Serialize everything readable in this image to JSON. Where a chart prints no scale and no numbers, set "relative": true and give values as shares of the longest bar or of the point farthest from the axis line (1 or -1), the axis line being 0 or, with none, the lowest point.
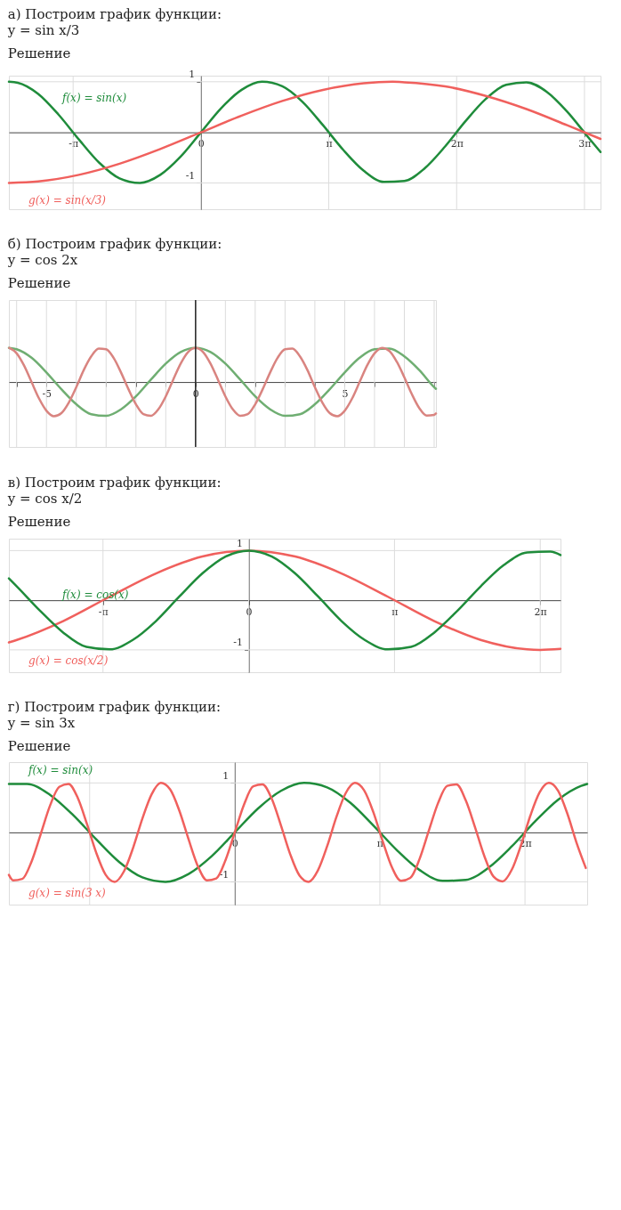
{
  "chart_data": [
    {
      "type": "line",
      "title": "а) Построим график функции:",
      "subtitle": "y = sin x/3",
      "annotations": [
        "Решение"
      ],
      "xlim": [
        -4.72,
        9.82
      ],
      "ylim": [
        -1.52,
        1.12
      ],
      "xticks": [
        {
          "value": -3.1416,
          "label": "-π"
        },
        0,
        {
          "value": 3.1416,
          "label": "π"
        },
        {
          "value": 6.2832,
          "label": "2π"
        },
        {
          "value": 9.4248,
          "label": "3π"
        }
      ],
      "yticks": [
        -1,
        1
      ],
      "grid": true,
      "series": [
        {
          "name": "f(x) = sin(x)",
          "color": "#1f8c3b",
          "x": [
            -4.72,
            -4.5,
            -4,
            -3.5,
            -3,
            -2.5,
            -2,
            -1.5,
            -1,
            -0.5,
            0,
            0.5,
            1,
            1.5,
            2,
            2.5,
            3,
            3.5,
            4,
            4.5,
            5,
            5.5,
            6,
            6.5,
            7,
            7.5,
            8,
            8.5,
            9,
            9.5,
            9.82
          ],
          "values": [
            1.0,
            0.98,
            0.76,
            0.35,
            -0.14,
            -0.6,
            -0.91,
            -1.0,
            -0.84,
            -0.48,
            0,
            0.48,
            0.84,
            1.0,
            0.91,
            0.6,
            0.14,
            -0.35,
            -0.76,
            -0.98,
            -0.96,
            -0.71,
            -0.28,
            0.22,
            0.66,
            0.94,
            0.99,
            0.8,
            0.41,
            -0.08,
            -0.39
          ]
        },
        {
          "name": "g(x) = sin(x/3)",
          "color": "#f0605d",
          "x": [
            -4.72,
            -4,
            -3,
            -2,
            -1,
            0,
            1,
            2,
            3,
            4,
            4.71,
            5,
            6,
            7,
            8,
            9,
            9.82
          ],
          "values": [
            -1.0,
            -0.97,
            -0.84,
            -0.62,
            -0.33,
            0,
            0.33,
            0.62,
            0.84,
            0.97,
            1.0,
            0.99,
            0.91,
            0.72,
            0.46,
            0.14,
            -0.13
          ]
        }
      ]
    },
    {
      "type": "line",
      "title": "б) Построим график функции:",
      "subtitle": "y = cos 2x",
      "annotations": [
        "Решение"
      ],
      "relative": true,
      "xlim": [
        -6.26,
        8.06
      ],
      "xticks": [
        {
          "value": -6,
          "label": null
        },
        -5,
        {
          "value": -4,
          "label": null
        },
        {
          "value": -3,
          "label": null
        },
        {
          "value": -2,
          "label": null
        },
        {
          "value": -1,
          "label": null
        },
        0,
        {
          "value": 1,
          "label": null
        },
        {
          "value": 2,
          "label": null
        },
        {
          "value": 3,
          "label": null
        },
        {
          "value": 4,
          "label": null
        },
        5,
        {
          "value": 6,
          "label": null
        },
        {
          "value": 7,
          "label": null
        },
        {
          "value": 8,
          "label": null
        }
      ],
      "grid": "x",
      "ref_lines": [
        {
          "axis": "x",
          "value": 0,
          "color": "#222222"
        }
      ],
      "series": [
        {
          "color": "#6fae72",
          "x": [
            -6.26,
            -6,
            -5.5,
            -5,
            -4.5,
            -4,
            -3.5,
            -3,
            -2.5,
            -2,
            -1.5,
            -1,
            -0.5,
            0,
            0.5,
            1,
            1.5,
            2,
            2.5,
            3,
            3.5,
            4,
            4.5,
            5,
            5.5,
            6,
            6.5,
            7,
            7.5,
            8,
            8.06
          ],
          "values": [
            1.0,
            0.96,
            0.71,
            0.28,
            -0.21,
            -0.65,
            -0.94,
            -0.99,
            -0.8,
            -0.42,
            0.07,
            0.54,
            0.88,
            1,
            0.88,
            0.54,
            0.07,
            -0.42,
            -0.8,
            -0.99,
            -0.94,
            -0.65,
            -0.21,
            0.28,
            0.71,
            0.96,
            0.98,
            0.75,
            0.35,
            -0.15,
            -0.2
          ]
        },
        {
          "color": "#d98480",
          "x": [
            -6.25,
            -6,
            -5.75,
            -5.5,
            -5.25,
            -5,
            -4.75,
            -4.5,
            -4.25,
            -4,
            -3.75,
            -3.5,
            -3.25,
            -3,
            -2.75,
            -2.5,
            -2.25,
            -2,
            -1.75,
            -1.5,
            -1.25,
            -1,
            -0.75,
            -0.5,
            -0.25,
            0,
            0.25,
            0.5,
            0.75,
            1,
            1.25,
            1.5,
            1.75,
            2,
            2.25,
            2.5,
            2.75,
            3,
            3.25,
            3.5,
            3.75,
            4,
            4.25,
            4.5,
            4.75,
            5,
            5.25,
            5.5,
            5.75,
            6,
            6.25,
            6.5,
            6.75,
            7,
            7.25,
            7.5,
            7.75,
            8,
            8.06
          ],
          "values": [
            1.0,
            0.84,
            0.48,
            0.0,
            -0.48,
            -0.84,
            -1.0,
            -0.91,
            -0.6,
            -0.15,
            0.35,
            0.75,
            0.98,
            0.96,
            0.71,
            0.28,
            -0.21,
            -0.65,
            -0.94,
            -0.99,
            -0.8,
            -0.42,
            0.07,
            0.54,
            0.88,
            1,
            0.88,
            0.54,
            0.07,
            -0.42,
            -0.8,
            -0.99,
            -0.94,
            -0.65,
            -0.21,
            0.28,
            0.71,
            0.96,
            0.98,
            0.75,
            0.35,
            -0.15,
            -0.6,
            -0.91,
            -1.0,
            -0.84,
            -0.48,
            0.0,
            0.48,
            0.84,
            1.0,
            0.91,
            0.59,
            0.14,
            -0.35,
            -0.76,
            -0.98,
            -0.96,
            -0.92
          ]
        }
      ]
    },
    {
      "type": "line",
      "title": "в) Построим график функции:",
      "subtitle": "y = cos x/2",
      "annotations": [
        "Решение"
      ],
      "xlim": [
        -5.17,
        6.72
      ],
      "ylim": [
        -1.45,
        1.24
      ],
      "xticks": [
        {
          "value": -3.1416,
          "label": "-π"
        },
        0,
        {
          "value": 3.1416,
          "label": "π"
        },
        {
          "value": 6.2832,
          "label": "2π"
        }
      ],
      "yticks": [
        -1,
        1
      ],
      "grid": true,
      "series": [
        {
          "name": "g(x) = cos(x/2)",
          "color": "#f0605d",
          "x": [
            -5.17,
            -5,
            -4,
            -3,
            -2,
            -1,
            0,
            1,
            2,
            3,
            4,
            5,
            6,
            6.28,
            6.72
          ],
          "values": [
            -0.85,
            -0.8,
            -0.42,
            0.07,
            0.54,
            0.88,
            1,
            0.88,
            0.54,
            0.07,
            -0.42,
            -0.8,
            -0.99,
            -1.0,
            -0.98
          ]
        },
        {
          "name": "f(x) = cos(x)",
          "color": "#1f8c3b",
          "x": [
            -5.17,
            -5,
            -4.5,
            -4,
            -3.5,
            -3,
            -2.5,
            -2,
            -1.5,
            -1,
            -0.5,
            0,
            0.5,
            1,
            1.5,
            2,
            2.5,
            3,
            3.5,
            4,
            4.5,
            5,
            5.5,
            6,
            6.5,
            6.72
          ],
          "values": [
            0.44,
            0.28,
            -0.21,
            -0.65,
            -0.94,
            -0.99,
            -0.8,
            -0.42,
            0.07,
            0.54,
            0.88,
            1,
            0.88,
            0.54,
            0.07,
            -0.42,
            -0.8,
            -0.99,
            -0.94,
            -0.65,
            -0.21,
            0.28,
            0.71,
            0.96,
            0.98,
            0.91
          ]
        }
      ]
    },
    {
      "type": "line",
      "title": "г) Построим график функции:",
      "subtitle": "y = sin 3x",
      "annotations": [
        "Решение"
      ],
      "xlim": [
        -4.89,
        7.63
      ],
      "ylim": [
        -1.46,
        1.42
      ],
      "xticks": [
        {
          "value": -3.1416,
          "label": null
        },
        0,
        {
          "value": 3.1416,
          "label": "π"
        },
        {
          "value": 6.2832,
          "label": "2π"
        }
      ],
      "yticks": [
        -1,
        1
      ],
      "grid": true,
      "series": [
        {
          "name": "f(x) = sin(x)",
          "color": "#1f8c3b",
          "x": [
            -4.89,
            -4.5,
            -4,
            -3.5,
            -3,
            -2.5,
            -2,
            -1.5,
            -1,
            -0.5,
            0,
            0.5,
            1,
            1.5,
            2,
            2.5,
            3,
            3.5,
            4,
            4.5,
            5,
            5.5,
            6,
            6.5,
            7,
            7.5,
            7.63
          ],
          "values": [
            0.98,
            0.98,
            0.76,
            0.35,
            -0.14,
            -0.6,
            -0.91,
            -1.0,
            -0.84,
            -0.48,
            0,
            0.48,
            0.84,
            1.0,
            0.91,
            0.6,
            0.14,
            -0.35,
            -0.76,
            -0.98,
            -0.96,
            -0.71,
            -0.28,
            0.22,
            0.66,
            0.94,
            0.98
          ]
        },
        {
          "name": "g(x) = sin(3 x)",
          "color": "#f0605d",
          "x": [
            -4.89,
            -4.8,
            -4.6,
            -4.4,
            -4.2,
            -4.0,
            -3.8,
            -3.6,
            -3.4,
            -3.2,
            -3.0,
            -2.8,
            -2.6,
            -2.4,
            -2.2,
            -2.0,
            -1.8,
            -1.6,
            -1.4,
            -1.2,
            -1.0,
            -0.8,
            -0.6,
            -0.4,
            -0.2,
            0,
            0.2,
            0.4,
            0.6,
            0.8,
            1.0,
            1.2,
            1.4,
            1.6,
            1.8,
            2.0,
            2.2,
            2.4,
            2.6,
            2.8,
            3.0,
            3.2,
            3.4,
            3.6,
            3.8,
            4.0,
            4.2,
            4.4,
            4.6,
            4.8,
            5.0,
            5.2,
            5.4,
            5.6,
            5.8,
            6.0,
            6.2,
            6.4,
            6.6,
            6.8,
            7.0,
            7.2,
            7.4,
            7.6
          ],
          "values": [
            -0.86,
            -0.97,
            -0.94,
            -0.59,
            -0.03,
            0.54,
            0.92,
            0.98,
            0.7,
            0.17,
            -0.41,
            -0.85,
            -1.0,
            -0.79,
            -0.31,
            0.28,
            0.77,
            1.0,
            0.87,
            0.44,
            -0.14,
            -0.68,
            -0.97,
            -0.93,
            -0.56,
            0,
            0.56,
            0.93,
            0.97,
            0.68,
            0.14,
            -0.44,
            -0.87,
            -1.0,
            -0.77,
            -0.28,
            0.31,
            0.79,
            1.0,
            0.85,
            0.41,
            -0.17,
            -0.7,
            -0.98,
            -0.92,
            -0.54,
            0.03,
            0.59,
            0.94,
            0.97,
            0.65,
            0.11,
            -0.47,
            -0.89,
            -0.99,
            -0.75,
            -0.25,
            0.34,
            0.81,
            1.0,
            0.84,
            0.38,
            -0.21,
            -0.72
          ]
        }
      ]
    }
  ]
}
